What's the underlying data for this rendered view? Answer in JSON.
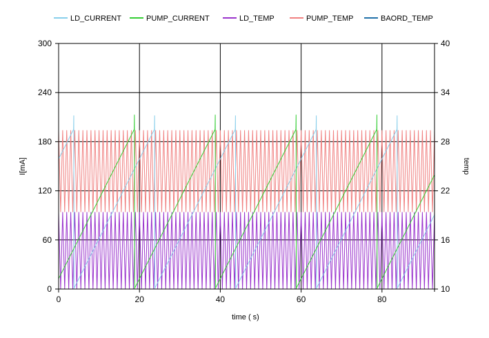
{
  "chart_data": {
    "type": "line",
    "xlabel": "time ( s)",
    "ylabel_left": "I[mA]",
    "ylabel_right": "temp",
    "xlim": [
      0,
      93
    ],
    "ylim_left": [
      0,
      300
    ],
    "ylim_right": [
      10,
      40
    ],
    "xticks": [
      "0",
      "20",
      "40",
      "60",
      "80"
    ],
    "yticks_left": [
      "0",
      "60",
      "120",
      "180",
      "240",
      "300"
    ],
    "yticks_right": [
      "10",
      "16",
      "22",
      "28",
      "34",
      "40"
    ],
    "grid": true,
    "legend_position": "top",
    "legend": [
      {
        "name": "LD_CURRENT",
        "color": "#87ceeb"
      },
      {
        "name": "PUMP_CURRENT",
        "color": "#32cd32"
      },
      {
        "name": "LD_TEMP",
        "color": "#9932cc"
      },
      {
        "name": "PUMP_TEMP",
        "color": "#f08080"
      },
      {
        "name": "BAORD_TEMP",
        "color": "#1f6fa8"
      }
    ],
    "series": [
      {
        "name": "LD_CURRENT",
        "axis": "left",
        "color": "#87ceeb",
        "pattern": "sawtooth",
        "min": 0,
        "max": 195,
        "peak": 212,
        "period": 20,
        "phase": 3.7
      },
      {
        "name": "PUMP_CURRENT",
        "axis": "left",
        "color": "#32cd32",
        "pattern": "sawtooth",
        "min": 0,
        "max": 195,
        "peak": 213,
        "period": 20,
        "phase": 18.7
      },
      {
        "name": "LD_TEMP",
        "axis": "right",
        "color": "#9932cc",
        "pattern": "oscillation",
        "min": 10,
        "max": 19.4,
        "cycle": 1.0
      },
      {
        "name": "PUMP_TEMP",
        "axis": "right",
        "color": "#f08080",
        "pattern": "oscillation",
        "min": 19.4,
        "max": 29.4,
        "cycle": 1.0
      },
      {
        "name": "BAORD_TEMP",
        "axis": "right",
        "color": "#1f6fa8",
        "pattern": "constant",
        "value": 10
      }
    ]
  }
}
